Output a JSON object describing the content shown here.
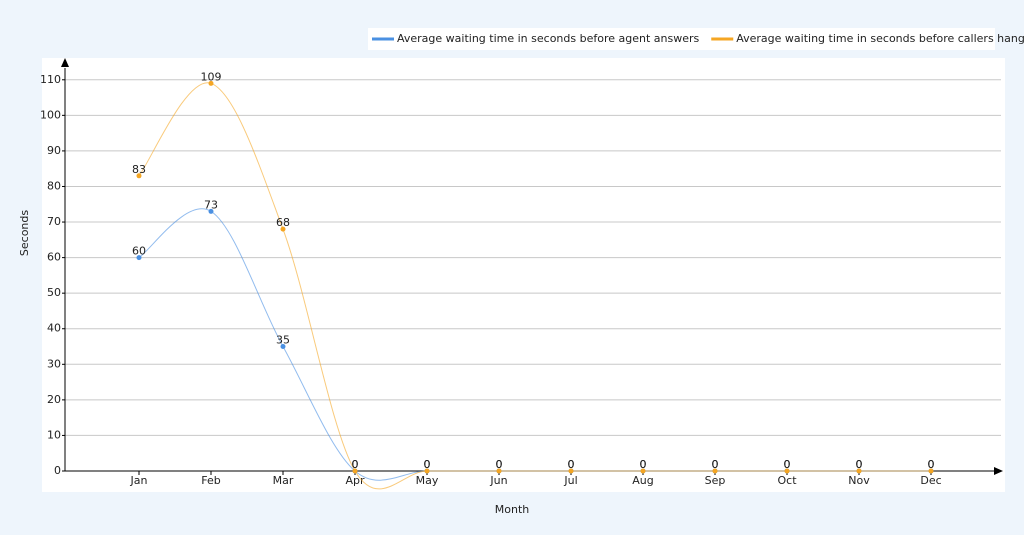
{
  "chart_data": {
    "type": "line",
    "x_label": "Month",
    "y_label": "Seconds",
    "categories": [
      "Jan",
      "Feb",
      "Mar",
      "Apr",
      "May",
      "Jun",
      "Jul",
      "Aug",
      "Sep",
      "Oct",
      "Nov",
      "Dec"
    ],
    "series": [
      {
        "name": "Average waiting time in seconds before agent answers",
        "color": "#4a90e2",
        "values": [
          60,
          73,
          35,
          0,
          0,
          0,
          0,
          0,
          0,
          0,
          0,
          0
        ]
      },
      {
        "name": "Average waiting time in seconds before callers hang up",
        "color": "#f5a623",
        "values": [
          83,
          109,
          68,
          0,
          0,
          0,
          0,
          0,
          0,
          0,
          0,
          0
        ]
      }
    ],
    "ylim": [
      0,
      115
    ],
    "yticks": [
      0,
      10,
      20,
      30,
      40,
      50,
      60,
      70,
      80,
      90,
      100,
      110
    ],
    "grid": true,
    "legend": "top-right"
  }
}
